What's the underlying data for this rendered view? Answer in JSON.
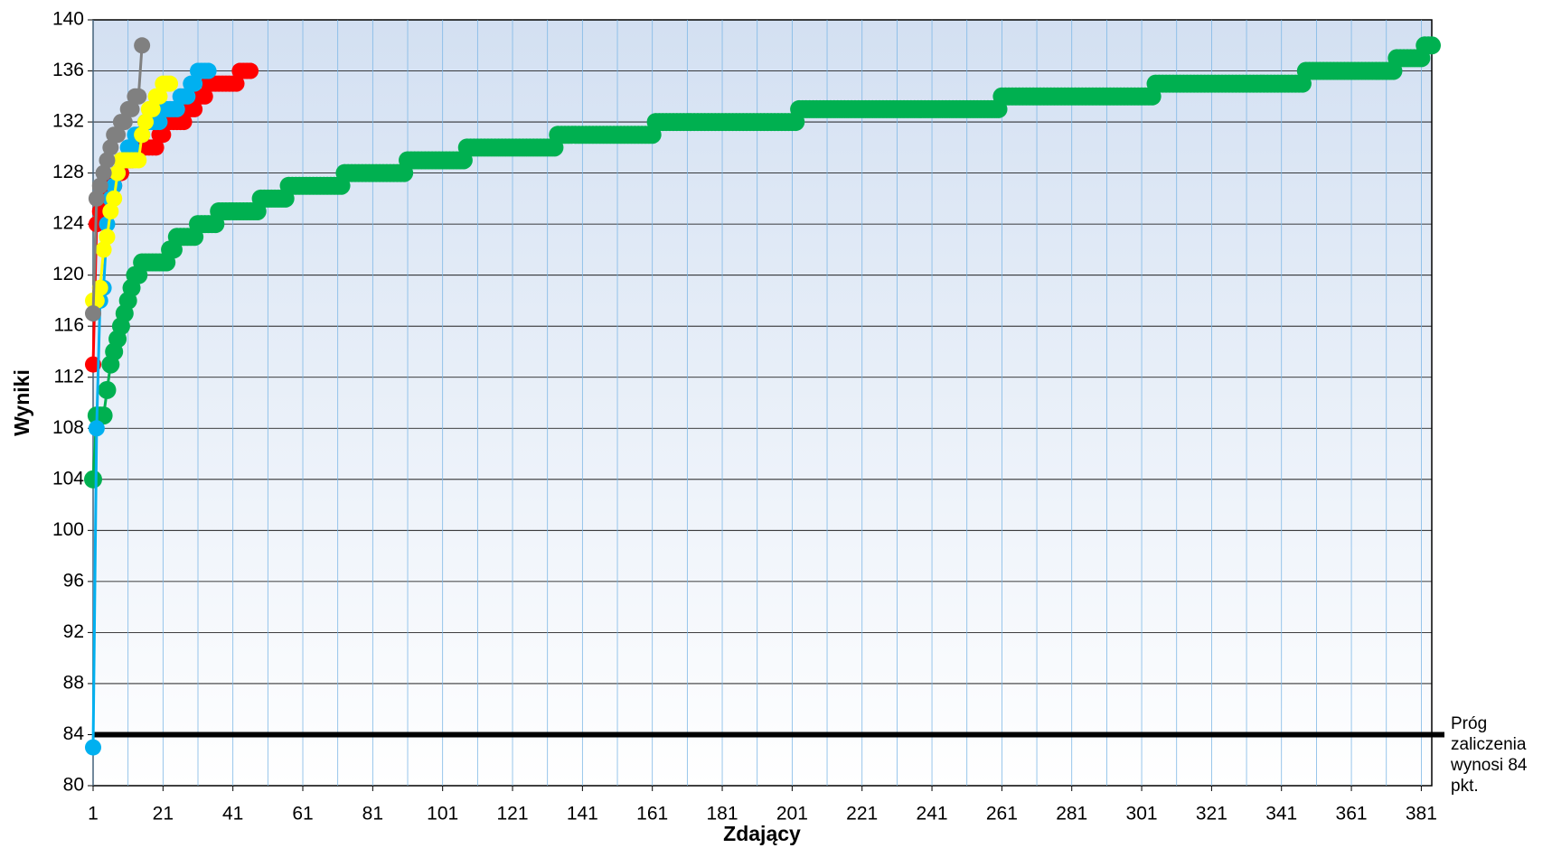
{
  "chart_data": {
    "type": "line",
    "xlabel": "Zdający",
    "ylabel": "Wyniki",
    "xlim": [
      1,
      384
    ],
    "ylim": [
      80,
      140
    ],
    "xticks": [
      1,
      21,
      41,
      61,
      81,
      101,
      121,
      141,
      161,
      181,
      201,
      221,
      241,
      261,
      281,
      301,
      321,
      341,
      361,
      381
    ],
    "xgrid": [
      1,
      11,
      21,
      31,
      41,
      51,
      61,
      71,
      81,
      91,
      101,
      111,
      121,
      131,
      141,
      151,
      161,
      171,
      181,
      191,
      201,
      211,
      221,
      231,
      241,
      251,
      261,
      271,
      281,
      291,
      301,
      311,
      321,
      331,
      341,
      351,
      361,
      371,
      381
    ],
    "yticks": [
      80,
      84,
      88,
      92,
      96,
      100,
      104,
      108,
      112,
      116,
      120,
      124,
      128,
      132,
      136,
      140
    ],
    "grid": true,
    "threshold": {
      "value": 84,
      "label": "Próg zaliczenia wynosi 84 pkt.",
      "color": "#000000"
    },
    "series": [
      {
        "color": "#00b050",
        "values": [
          104,
          109,
          109,
          109,
          111,
          113,
          114,
          115,
          116,
          117,
          118,
          119,
          120,
          120,
          121,
          121,
          121,
          121,
          121,
          121,
          121,
          121,
          122,
          122,
          123,
          123,
          123,
          123,
          123,
          123,
          124,
          124,
          124,
          124,
          124,
          124,
          125,
          125,
          125,
          125,
          125,
          125,
          125,
          125,
          125,
          125,
          125,
          125,
          126,
          126,
          126,
          126,
          126,
          126,
          126,
          126,
          127,
          127,
          127,
          127,
          127,
          127,
          127,
          127,
          127,
          127,
          127,
          127,
          127,
          127,
          127,
          127,
          128,
          128,
          128,
          128,
          128,
          128,
          128,
          128,
          128,
          128,
          128,
          128,
          128,
          128,
          128,
          128,
          128,
          128,
          129,
          129,
          129,
          129,
          129,
          129,
          129,
          129,
          129,
          129,
          129,
          129,
          129,
          129,
          129,
          129,
          129,
          130,
          130,
          130,
          130,
          130,
          130,
          130,
          130,
          130,
          130,
          130,
          130,
          130,
          130,
          130,
          130,
          130,
          130,
          130,
          130,
          130,
          130,
          130,
          130,
          130,
          130,
          131,
          131,
          131,
          131,
          131,
          131,
          131,
          131,
          131,
          131,
          131,
          131,
          131,
          131,
          131,
          131,
          131,
          131,
          131,
          131,
          131,
          131,
          131,
          131,
          131,
          131,
          131,
          131,
          132,
          132,
          132,
          132,
          132,
          132,
          132,
          132,
          132,
          132,
          132,
          132,
          132,
          132,
          132,
          132,
          132,
          132,
          132,
          132,
          132,
          132,
          132,
          132,
          132,
          132,
          132,
          132,
          132,
          132,
          132,
          132,
          132,
          132,
          132,
          132,
          132,
          132,
          132,
          132,
          132,
          133,
          133,
          133,
          133,
          133,
          133,
          133,
          133,
          133,
          133,
          133,
          133,
          133,
          133,
          133,
          133,
          133,
          133,
          133,
          133,
          133,
          133,
          133,
          133,
          133,
          133,
          133,
          133,
          133,
          133,
          133,
          133,
          133,
          133,
          133,
          133,
          133,
          133,
          133,
          133,
          133,
          133,
          133,
          133,
          133,
          133,
          133,
          133,
          133,
          133,
          133,
          133,
          133,
          133,
          133,
          133,
          133,
          133,
          134,
          134,
          134,
          134,
          134,
          134,
          134,
          134,
          134,
          134,
          134,
          134,
          134,
          134,
          134,
          134,
          134,
          134,
          134,
          134,
          134,
          134,
          134,
          134,
          134,
          134,
          134,
          134,
          134,
          134,
          134,
          134,
          134,
          134,
          134,
          134,
          134,
          134,
          134,
          134,
          134,
          134,
          134,
          134,
          135,
          135,
          135,
          135,
          135,
          135,
          135,
          135,
          135,
          135,
          135,
          135,
          135,
          135,
          135,
          135,
          135,
          135,
          135,
          135,
          135,
          135,
          135,
          135,
          135,
          135,
          135,
          135,
          135,
          135,
          135,
          135,
          135,
          135,
          135,
          135,
          135,
          135,
          135,
          135,
          135,
          135,
          135,
          136,
          136,
          136,
          136,
          136,
          136,
          136,
          136,
          136,
          136,
          136,
          136,
          136,
          136,
          136,
          136,
          136,
          136,
          136,
          136,
          136,
          136,
          136,
          136,
          136,
          136,
          137,
          137,
          137,
          137,
          137,
          137,
          137,
          137,
          138,
          138,
          138
        ]
      },
      {
        "color": "#ff0000",
        "values": [
          113,
          124,
          125,
          126,
          127,
          127,
          127,
          128,
          128,
          129,
          129,
          129,
          130,
          130,
          130,
          130,
          130,
          130,
          130,
          131,
          131,
          132,
          132,
          132,
          132,
          132,
          132,
          133,
          133,
          133,
          134,
          134,
          134,
          135,
          135,
          135,
          135,
          135,
          135,
          135,
          135,
          135,
          136,
          136,
          136,
          136
        ]
      },
      {
        "color": "#00b0f0",
        "values": [
          83,
          108,
          118,
          119,
          124,
          126,
          127,
          128,
          129,
          129,
          130,
          130,
          131,
          131,
          131,
          132,
          132,
          132,
          132,
          132,
          133,
          133,
          133,
          133,
          133,
          134,
          134,
          134,
          135,
          135,
          136,
          136,
          136,
          136
        ]
      },
      {
        "color": "#ffff00",
        "values": [
          118,
          118,
          119,
          122,
          123,
          125,
          126,
          128,
          129,
          129,
          129,
          129,
          129,
          129,
          131,
          132,
          133,
          133,
          134,
          134,
          135,
          135,
          135
        ]
      },
      {
        "color": "#808080",
        "values": [
          117,
          126,
          127,
          128,
          129,
          130,
          131,
          131,
          132,
          132,
          133,
          133,
          134,
          134,
          138
        ]
      }
    ]
  }
}
